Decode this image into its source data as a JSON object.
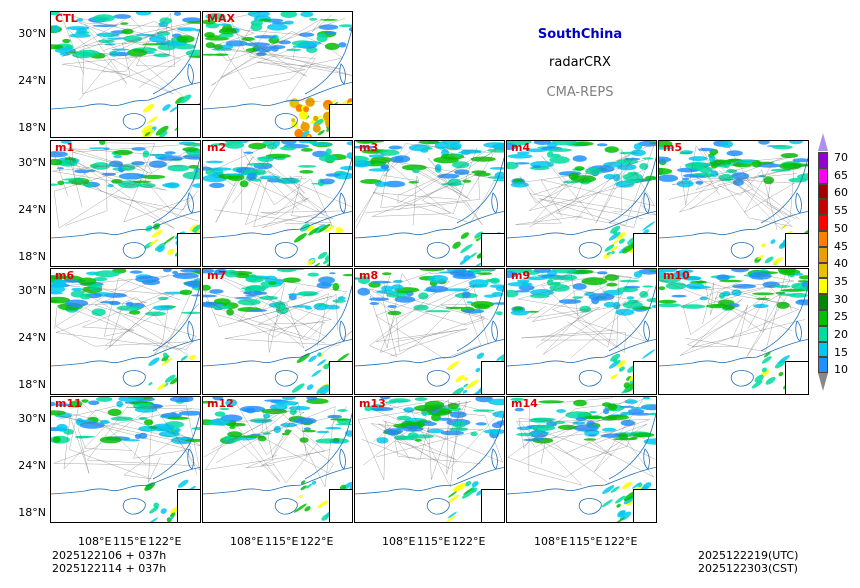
{
  "header": {
    "region": "SouthChina",
    "variable": "radarCRX",
    "system": "CMA-REPS"
  },
  "panels": [
    {
      "label": "CTL"
    },
    {
      "label": "MAX"
    },
    {
      "label": "m1"
    },
    {
      "label": "m2"
    },
    {
      "label": "m3"
    },
    {
      "label": "m4"
    },
    {
      "label": "m5"
    },
    {
      "label": "m6"
    },
    {
      "label": "m7"
    },
    {
      "label": "m8"
    },
    {
      "label": "m9"
    },
    {
      "label": "m10"
    },
    {
      "label": "m11"
    },
    {
      "label": "m12"
    },
    {
      "label": "m13"
    },
    {
      "label": "m14"
    }
  ],
  "axes": {
    "lat_ticks": [
      "30°N",
      "24°N",
      "18°N"
    ],
    "lon_ticks": [
      "108°E",
      "115°E",
      "122°E"
    ]
  },
  "colorbar": {
    "levels": [
      "70",
      "65",
      "60",
      "55",
      "50",
      "45",
      "40",
      "35",
      "30",
      "25",
      "20",
      "15",
      "10"
    ],
    "colors": [
      "#1e90ff",
      "#00c8f0",
      "#00dca0",
      "#00c000",
      "#008800",
      "#ffff00",
      "#e8c000",
      "#e8a000",
      "#ff8000",
      "#ff0000",
      "#c80000",
      "#a00000",
      "#ff00f0",
      "#9400d3",
      "#ad90f0"
    ]
  },
  "footer": {
    "init_utc": "2025122106  +  037h",
    "init_cst": "2025122114  +  037h",
    "valid_utc": "2025122219(UTC)",
    "valid_cst": "2025122303(CST)"
  }
}
